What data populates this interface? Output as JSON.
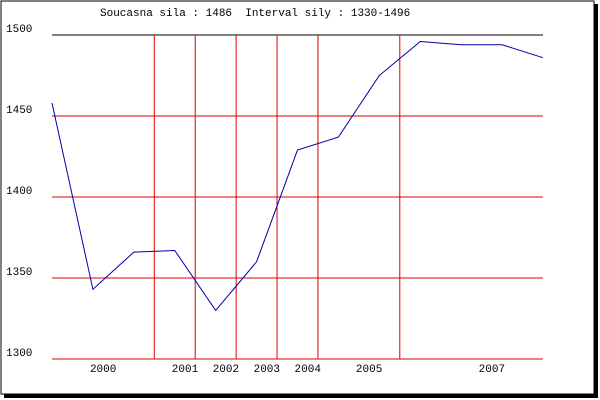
{
  "chart_data": {
    "type": "line",
    "title": "Soucasna sila : 1486  Interval sily : 1330-1496",
    "x": [
      0,
      1,
      2,
      3,
      4,
      5,
      6,
      7,
      8,
      9,
      10,
      11,
      12
    ],
    "series": [
      {
        "color": "#0000aa",
        "values": [
          1458,
          1343,
          1366,
          1367,
          1330,
          1360,
          1429,
          1437,
          1475,
          1496,
          1494,
          1494,
          1486
        ]
      }
    ],
    "xlim": [
      0,
      12
    ],
    "xticks": [
      {
        "value": 1.25,
        "label": "2000"
      },
      {
        "value": 3.25,
        "label": "2001"
      },
      {
        "value": 4.25,
        "label": "2002"
      },
      {
        "value": 5.25,
        "label": "2003"
      },
      {
        "value": 6.25,
        "label": "2004"
      },
      {
        "value": 7.75,
        "label": "2005"
      },
      {
        "value": 10.75,
        "label": "2007"
      }
    ],
    "xgrid": [
      2.5,
      3.5,
      4.5,
      5.5,
      6.5,
      8.5
    ],
    "ylim": [
      1300,
      1500
    ],
    "yticks": [
      1300,
      1350,
      1400,
      1450,
      1500
    ],
    "grid_color": "#dd0000"
  }
}
